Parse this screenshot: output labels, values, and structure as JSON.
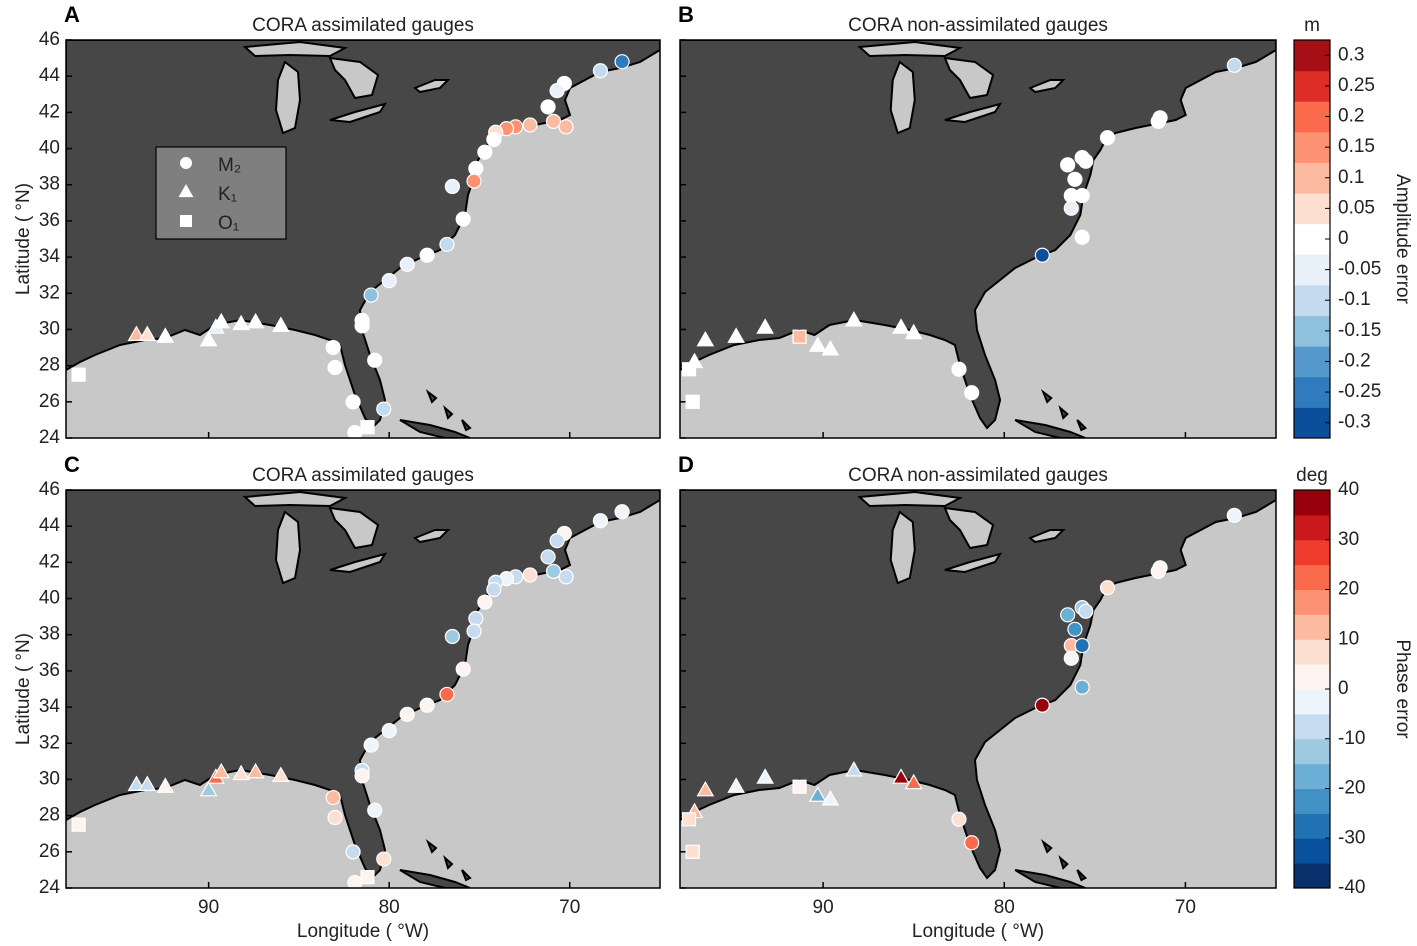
{
  "chart_data": [
    {
      "type": "scatter",
      "label": "A",
      "title": "CORA assimilated gauges",
      "ylabel": "Latitude ( °N)",
      "xlim": [
        97.9,
        65
      ],
      "ylim": [
        24,
        46
      ],
      "xticks": [
        90,
        80,
        70
      ],
      "yticks": [
        24,
        26,
        28,
        30,
        32,
        34,
        36,
        38,
        40,
        42,
        44,
        46
      ],
      "legend": {
        "labels": [
          "M₂",
          "K₁",
          "O₁"
        ],
        "markers": [
          "circle",
          "triangle",
          "square"
        ]
      },
      "x": [
        67.1,
        68.3,
        70.3,
        70.7,
        71.2,
        70.9,
        70.2,
        72.2,
        73.0,
        73.5,
        74.1,
        74.2,
        74.7,
        75.2,
        75.3,
        76.5,
        75.9,
        76.8,
        77.9,
        79.0,
        80.0,
        81.0,
        81.5,
        81.5,
        80.8,
        80.3,
        81.9,
        82.0,
        83.0,
        83.1,
        94.0,
        93.4,
        92.4,
        90.0,
        89.6,
        89.3,
        88.2,
        87.4,
        86.0,
        97.2,
        81.2
      ],
      "y": [
        44.8,
        44.3,
        43.6,
        43.2,
        42.3,
        41.5,
        41.2,
        41.3,
        41.2,
        41.1,
        40.9,
        40.5,
        39.8,
        38.9,
        38.2,
        37.9,
        36.1,
        34.7,
        34.1,
        33.6,
        32.7,
        31.9,
        30.5,
        30.2,
        28.3,
        25.6,
        24.3,
        26.0,
        27.9,
        29.0,
        29.7,
        29.7,
        29.6,
        29.4,
        30.1,
        30.4,
        30.3,
        30.4,
        30.2,
        27.5,
        24.6
      ],
      "markers": [
        "circle",
        "circle",
        "circle",
        "circle",
        "circle",
        "circle",
        "circle",
        "circle",
        "circle",
        "circle",
        "circle",
        "circle",
        "circle",
        "circle",
        "circle",
        "circle",
        "circle",
        "circle",
        "circle",
        "circle",
        "circle",
        "circle",
        "circle",
        "circle",
        "circle",
        "circle",
        "circle",
        "circle",
        "circle",
        "circle",
        "triangle",
        "triangle",
        "triangle",
        "triangle",
        "triangle",
        "triangle",
        "triangle",
        "triangle",
        "triangle",
        "square",
        "square"
      ],
      "values": [
        -0.25,
        -0.1,
        0,
        -0.05,
        0,
        0.1,
        0.1,
        0.1,
        0.15,
        0.15,
        0.05,
        0,
        0,
        0,
        0.15,
        -0.05,
        0,
        -0.1,
        0,
        -0.05,
        -0.05,
        -0.15,
        0,
        0,
        0,
        -0.1,
        0,
        0,
        0,
        0,
        0.1,
        0.05,
        0,
        0,
        -0.05,
        0,
        0,
        0,
        0,
        0,
        0
      ]
    },
    {
      "type": "scatter",
      "label": "B",
      "title": "CORA non-assimilated gauges",
      "xlim": [
        97.9,
        65
      ],
      "ylim": [
        24,
        46
      ],
      "xticks": [
        90,
        80,
        70
      ],
      "yticks": [
        24,
        26,
        28,
        30,
        32,
        34,
        36,
        38,
        40,
        42,
        44,
        46
      ],
      "colorbar": {
        "title": "m",
        "label": "Amplitude error",
        "clim": [
          -0.325,
          0.325
        ],
        "ticks": [
          0.3,
          0.25,
          0.2,
          0.15,
          0.1,
          0.05,
          0,
          -0.05,
          -0.1,
          -0.15,
          -0.2,
          -0.25,
          -0.3
        ],
        "colors": [
          "#0b4f9c",
          "#2f7bbd",
          "#5599cc",
          "#8dc1dd",
          "#c4daee",
          "#e8f0fa",
          "#ffffff",
          "#fde0d2",
          "#fcbba1",
          "#fc9272",
          "#fb6a4a",
          "#de2d26",
          "#a50f15"
        ]
      },
      "x": [
        67.3,
        71.4,
        71.5,
        74.3,
        75.7,
        75.5,
        76.5,
        76.1,
        76.3,
        75.7,
        76.3,
        75.7,
        77.9,
        82.5,
        81.8,
        96.5,
        94.8,
        93.2,
        91.3,
        90.3,
        89.6,
        88.3,
        85.7,
        85.0,
        97.1,
        97.4,
        97.2
      ],
      "y": [
        44.6,
        41.7,
        41.5,
        40.6,
        39.5,
        39.3,
        39.1,
        38.3,
        37.4,
        37.4,
        36.7,
        35.1,
        34.1,
        27.8,
        26.5,
        29.4,
        29.6,
        30.1,
        29.6,
        29.1,
        28.9,
        30.5,
        30.1,
        29.8,
        28.2,
        27.8,
        26.0
      ],
      "markers": [
        "circle",
        "circle",
        "circle",
        "circle",
        "circle",
        "circle",
        "circle",
        "circle",
        "circle",
        "circle",
        "circle",
        "circle",
        "circle",
        "circle",
        "circle",
        "triangle",
        "triangle",
        "triangle",
        "square",
        "triangle",
        "triangle",
        "triangle",
        "triangle",
        "triangle",
        "triangle",
        "square",
        "square"
      ],
      "values": [
        -0.1,
        0,
        0,
        0,
        0,
        0,
        0,
        0,
        0,
        0,
        -0.05,
        0,
        -0.3,
        0,
        0,
        0,
        0,
        0,
        0.1,
        0,
        0,
        0,
        0,
        0,
        0,
        0,
        0
      ]
    },
    {
      "type": "scatter",
      "label": "C",
      "title": "CORA assimilated gauges",
      "xlabel": "Longitude ( °W)",
      "ylabel": "Latitude ( °N)",
      "xlim": [
        97.9,
        65
      ],
      "ylim": [
        24,
        46
      ],
      "xticks": [
        90,
        80,
        70
      ],
      "yticks": [
        24,
        26,
        28,
        30,
        32,
        34,
        36,
        38,
        40,
        42,
        44,
        46
      ],
      "x": [
        67.1,
        68.3,
        70.3,
        70.7,
        71.2,
        70.9,
        70.2,
        72.2,
        73.0,
        73.5,
        74.1,
        74.2,
        74.7,
        75.2,
        75.3,
        76.5,
        75.9,
        76.8,
        77.9,
        79.0,
        80.0,
        81.0,
        81.5,
        81.5,
        80.8,
        80.3,
        81.9,
        82.0,
        83.0,
        83.1,
        94.0,
        93.4,
        92.4,
        90.0,
        89.6,
        89.3,
        88.2,
        87.4,
        86.0,
        97.2,
        81.2
      ],
      "y": [
        44.8,
        44.3,
        43.6,
        43.2,
        42.3,
        41.5,
        41.2,
        41.3,
        41.2,
        41.1,
        40.9,
        40.5,
        39.8,
        38.9,
        38.2,
        37.9,
        36.1,
        34.7,
        34.1,
        33.6,
        32.7,
        31.9,
        30.5,
        30.2,
        28.3,
        25.6,
        24.3,
        26.0,
        27.9,
        29.0,
        29.7,
        29.7,
        29.6,
        29.4,
        30.1,
        30.4,
        30.3,
        30.4,
        30.2,
        27.5,
        24.6
      ],
      "markers": [
        "circle",
        "circle",
        "circle",
        "circle",
        "circle",
        "circle",
        "circle",
        "circle",
        "circle",
        "circle",
        "circle",
        "circle",
        "circle",
        "circle",
        "circle",
        "circle",
        "circle",
        "circle",
        "circle",
        "circle",
        "circle",
        "circle",
        "circle",
        "circle",
        "circle",
        "circle",
        "circle",
        "circle",
        "circle",
        "circle",
        "triangle",
        "triangle",
        "triangle",
        "triangle",
        "triangle",
        "triangle",
        "triangle",
        "triangle",
        "triangle",
        "square",
        "square"
      ],
      "values": [
        -3,
        -3,
        2,
        -6,
        -6,
        -12,
        -6,
        7,
        -6,
        -3,
        -6,
        -6,
        2,
        -6,
        -6,
        -12,
        2,
        22,
        2,
        2,
        -3,
        -3,
        -6,
        2,
        -3,
        7,
        2,
        -6,
        7,
        12,
        -6,
        -6,
        2,
        -12,
        22,
        12,
        7,
        12,
        7,
        2,
        2
      ]
    },
    {
      "type": "scatter",
      "label": "D",
      "title": "CORA non-assimilated gauges",
      "xlabel": "Longitude ( °W)",
      "xlim": [
        97.9,
        65
      ],
      "ylim": [
        24,
        46
      ],
      "xticks": [
        90,
        80,
        70
      ],
      "yticks": [
        24,
        26,
        28,
        30,
        32,
        34,
        36,
        38,
        40,
        42,
        44,
        46
      ],
      "colorbar": {
        "title": "deg",
        "label": "Phase error",
        "clim": [
          -40,
          40
        ],
        "ticks": [
          40,
          30,
          20,
          10,
          0,
          -10,
          -20,
          -30,
          -40
        ],
        "colors": [
          "#08306b",
          "#08519c",
          "#2171b5",
          "#4292c6",
          "#6baed6",
          "#9ecae1",
          "#c6dbef",
          "#eef4fb",
          "#fdf4f0",
          "#fee0d2",
          "#fcbba1",
          "#fc9272",
          "#fb6a4a",
          "#ef3b2c",
          "#cb181d",
          "#99000d"
        ]
      },
      "x": [
        67.3,
        71.4,
        71.5,
        74.3,
        75.7,
        75.5,
        76.5,
        76.1,
        76.3,
        75.7,
        76.3,
        75.7,
        77.9,
        82.5,
        81.8,
        96.5,
        94.8,
        93.2,
        91.3,
        90.3,
        89.6,
        88.3,
        85.7,
        85.0,
        97.1,
        97.4,
        97.2
      ],
      "y": [
        44.6,
        41.7,
        41.5,
        40.6,
        39.5,
        39.3,
        39.1,
        38.3,
        37.4,
        37.4,
        36.7,
        35.1,
        34.1,
        27.8,
        26.5,
        29.4,
        29.6,
        30.1,
        29.6,
        29.1,
        28.9,
        30.5,
        30.1,
        29.8,
        28.2,
        27.8,
        26.0
      ],
      "markers": [
        "circle",
        "circle",
        "circle",
        "circle",
        "circle",
        "circle",
        "circle",
        "circle",
        "circle",
        "circle",
        "circle",
        "circle",
        "circle",
        "circle",
        "circle",
        "triangle",
        "triangle",
        "triangle",
        "square",
        "triangle",
        "triangle",
        "triangle",
        "triangle",
        "triangle",
        "triangle",
        "square",
        "square"
      ],
      "values": [
        -3,
        2,
        2,
        7,
        -12,
        -6,
        -17,
        -22,
        12,
        -27,
        2,
        -17,
        38,
        7,
        22,
        12,
        -3,
        -3,
        2,
        -17,
        -3,
        -6,
        35,
        22,
        12,
        7,
        7
      ]
    }
  ]
}
